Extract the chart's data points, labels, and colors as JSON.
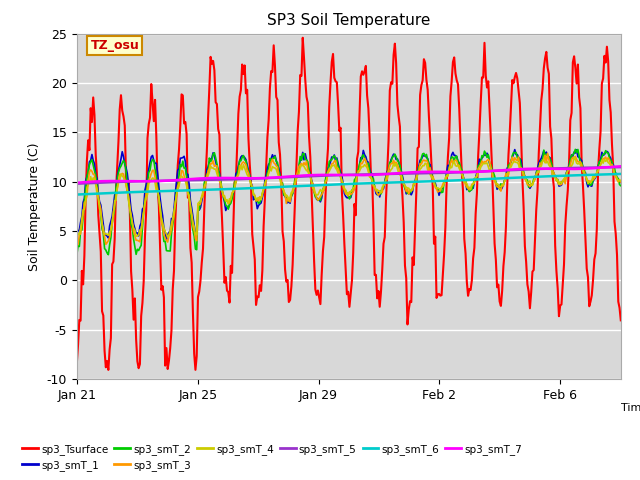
{
  "title": "SP3 Soil Temperature",
  "ylabel": "Soil Temperature (C)",
  "ylim": [
    -10,
    25
  ],
  "yticks": [
    -10,
    -5,
    0,
    5,
    10,
    15,
    20,
    25
  ],
  "background_color": "#ffffff",
  "plot_bg_color": "#d8d8d8",
  "annotation_text": "TZ_osu",
  "annotation_bg": "#ffffcc",
  "annotation_border": "#cc8800",
  "annotation_text_color": "#cc0000",
  "legend_entries": [
    "sp3_Tsurface",
    "sp3_smT_1",
    "sp3_smT_2",
    "sp3_smT_3",
    "sp3_smT_4",
    "sp3_smT_5",
    "sp3_smT_6",
    "sp3_smT_7"
  ],
  "line_colors": [
    "#ff0000",
    "#0000cc",
    "#00cc00",
    "#ff9900",
    "#cccc00",
    "#9933cc",
    "#00cccc",
    "#ff00ff"
  ],
  "xtick_labels": [
    "Jan 21",
    "Jan 25",
    "Jan 29",
    "Feb 2",
    "Feb 6"
  ],
  "xtick_positions": [
    0,
    4,
    8,
    12,
    16
  ],
  "n_days": 18,
  "n_per_day": 24
}
